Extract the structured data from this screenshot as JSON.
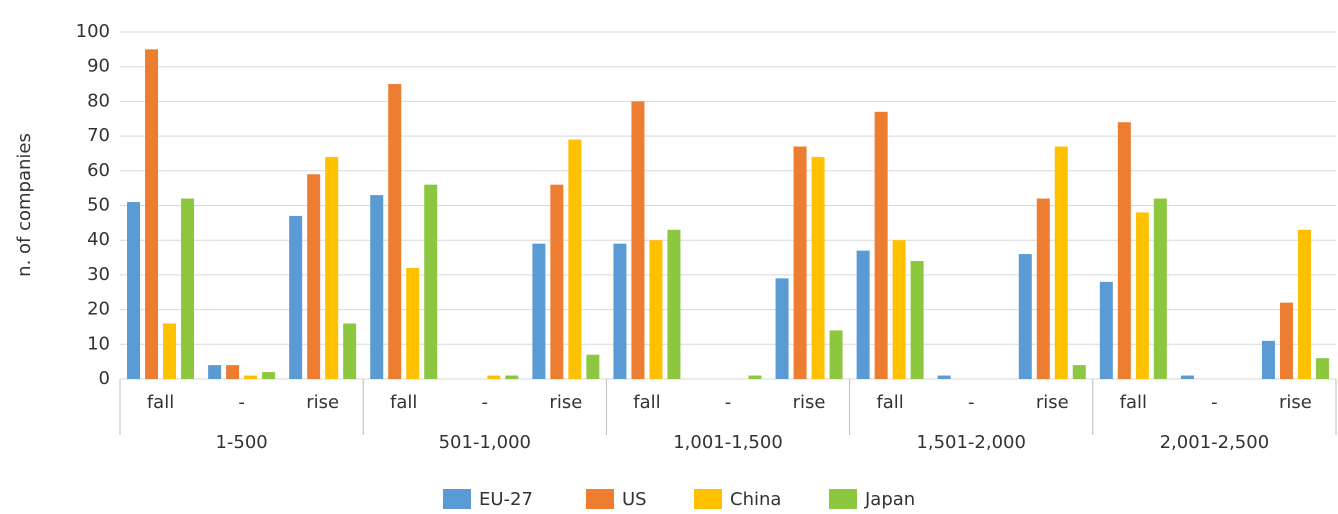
{
  "chart_data": {
    "type": "bar",
    "y_label": "n. of companies",
    "groups": [
      "1-500",
      "501-1,000",
      "1,001-1,500",
      "1,501-2,000",
      "2,001-2,500"
    ],
    "categories": [
      "fall",
      "-",
      "rise",
      "fall",
      "-",
      "rise",
      "fall",
      "-",
      "rise",
      "fall",
      "-",
      "rise",
      "fall",
      "-",
      "rise"
    ],
    "series": [
      {
        "name": "EU-27",
        "color": "#5b9bd5",
        "values": [
          51,
          4,
          47,
          53,
          0,
          39,
          39,
          0,
          29,
          37,
          1,
          36,
          28,
          1,
          11
        ]
      },
      {
        "name": "US",
        "color": "#ed7d31",
        "values": [
          95,
          4,
          59,
          85,
          0,
          56,
          80,
          0,
          67,
          77,
          0,
          52,
          74,
          0,
          22
        ]
      },
      {
        "name": "China",
        "color": "#ffc000",
        "values": [
          16,
          1,
          64,
          32,
          1,
          69,
          40,
          0,
          64,
          40,
          0,
          67,
          48,
          0,
          43
        ]
      },
      {
        "name": "Japan",
        "color": "#8dc63f",
        "values": [
          52,
          2,
          16,
          56,
          1,
          7,
          43,
          1,
          14,
          34,
          0,
          4,
          52,
          0,
          6
        ]
      }
    ],
    "ylim": [
      0,
      100
    ],
    "yticks": [
      0,
      10,
      20,
      30,
      40,
      50,
      60,
      70,
      80,
      90,
      100
    ],
    "grid": true,
    "legend": "bottom"
  }
}
